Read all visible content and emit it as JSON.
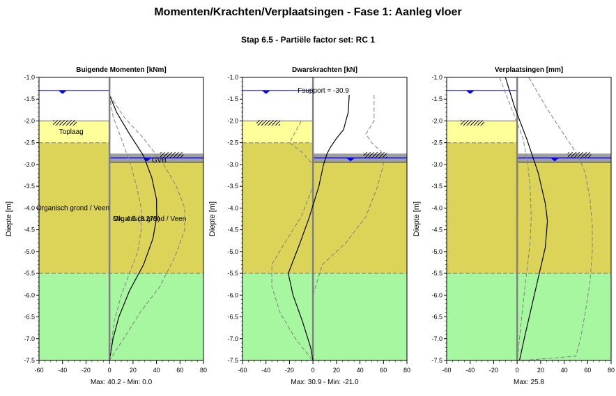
{
  "title": "Momenten/Krachten/Verplaatsingen - Fase 1: Aanleg vloer",
  "subtitle": "Stap 6.5 - Partiële factor set: RC 1",
  "colors": {
    "background": "#ffffff",
    "toplaag": "#ffff99",
    "organisch": "#dbd458",
    "zand": "#a6f7a0",
    "water_line": "#0000ff",
    "excavation_band": "#a0a0a0",
    "wall": "#808080",
    "result_line": "#000000",
    "envelope_line": "#808080"
  },
  "soil": {
    "left_surface": -2.0,
    "right_surface": -2.75,
    "layer_boundaries": [
      -2.5,
      -5.5
    ],
    "layers": [
      {
        "name": "Toplaag",
        "top": -2.0,
        "bottom": -2.5,
        "side": "left"
      },
      {
        "name": "Organisch grond / Veen",
        "top": -2.5,
        "bottom": -5.5,
        "side": "left"
      },
      {
        "name": "Organisch grond / Veen",
        "top": -2.95,
        "bottom": -5.5,
        "side": "right"
      },
      {
        "name": "",
        "top": -5.5,
        "bottom": -7.5,
        "side": "both"
      }
    ],
    "water_left": -1.3,
    "water_right": -2.85,
    "wall_bottom": -7.5
  },
  "labels": {
    "toplaag": "Toplaag",
    "organisch_left": "Organisch grond / Veen",
    "organisch_right": "Organisch grond / Veen",
    "mk": "Mk: 4.5 (3.275)",
    "gvb": "GVB",
    "fsupport": "Fsupport = -30.9"
  },
  "chart_data": [
    {
      "type": "line",
      "title": "Buigende Momenten [kNm]",
      "ylabel": "Diepte [m]",
      "xlim": [
        -60,
        80
      ],
      "ylim": [
        -7.5,
        -1.0
      ],
      "xticks": [
        -60,
        -40,
        -20,
        0,
        20,
        40,
        60,
        80
      ],
      "yticks": [
        -1.0,
        -1.5,
        -2.0,
        -2.5,
        -3.0,
        -3.5,
        -4.0,
        -4.5,
        -5.0,
        -5.5,
        -6.0,
        -6.5,
        -7.0,
        -7.5
      ],
      "footer": "Max: 40.2 - Min: 0.0",
      "series": [
        {
          "role": "result",
          "points": [
            [
              0,
              -1.4
            ],
            [
              6,
              -1.8
            ],
            [
              17,
              -2.3
            ],
            [
              29,
              -2.8
            ],
            [
              36,
              -3.3
            ],
            [
              40,
              -3.8
            ],
            [
              40.2,
              -4.2
            ],
            [
              37,
              -4.7
            ],
            [
              29,
              -5.3
            ],
            [
              17,
              -5.9
            ],
            [
              8,
              -6.5
            ],
            [
              3,
              -7.0
            ],
            [
              0,
              -7.5
            ]
          ]
        },
        {
          "role": "envelope",
          "points": [
            [
              0,
              -1.4
            ],
            [
              12,
              -1.9
            ],
            [
              29,
              -2.4
            ],
            [
              46,
              -3.0
            ],
            [
              57,
              -3.5
            ],
            [
              64,
              -4.0
            ],
            [
              64,
              -4.5
            ],
            [
              56,
              -5.1
            ],
            [
              43,
              -5.8
            ],
            [
              26,
              -6.4
            ],
            [
              12,
              -7.0
            ],
            [
              0,
              -7.5
            ]
          ]
        },
        {
          "role": "envelope",
          "points": [
            [
              0,
              -1.4
            ],
            [
              3,
              -1.9
            ],
            [
              10,
              -2.4
            ],
            [
              18,
              -3.0
            ],
            [
              23,
              -3.5
            ],
            [
              27,
              -4.0
            ],
            [
              27,
              -4.5
            ],
            [
              24,
              -5.0
            ],
            [
              17,
              -5.5
            ],
            [
              10,
              -6.0
            ],
            [
              4,
              -6.6
            ],
            [
              0,
              -7.5
            ]
          ]
        }
      ]
    },
    {
      "type": "line",
      "title": "Dwarskrachten [kN]",
      "ylabel": "Diepte [m]",
      "xlim": [
        -60,
        80
      ],
      "ylim": [
        -7.5,
        -1.0
      ],
      "xticks": [
        -60,
        -40,
        -20,
        0,
        20,
        40,
        60,
        80
      ],
      "yticks": [
        -1.0,
        -1.5,
        -2.0,
        -2.5,
        -3.0,
        -3.5,
        -4.0,
        -4.5,
        -5.0,
        -5.5,
        -6.0,
        -6.5,
        -7.0,
        -7.5
      ],
      "footer": "Max: 30.9 - Min: -21.0",
      "series": [
        {
          "role": "result",
          "points": [
            [
              30.9,
              -1.4
            ],
            [
              30,
              -1.8
            ],
            [
              26,
              -2.2
            ],
            [
              20,
              -2.4
            ],
            [
              15,
              -2.6
            ],
            [
              12,
              -2.75
            ],
            [
              9,
              -3.0
            ],
            [
              5,
              -3.5
            ],
            [
              -3,
              -4.2
            ],
            [
              -11,
              -4.8
            ],
            [
              -21,
              -5.5
            ],
            [
              -17,
              -6.0
            ],
            [
              -9,
              -6.6
            ],
            [
              -2,
              -7.2
            ],
            [
              0,
              -7.5
            ]
          ]
        },
        {
          "role": "envelope",
          "points": [
            [
              52,
              -1.4
            ],
            [
              52,
              -2.0
            ],
            [
              45,
              -2.3
            ],
            [
              50,
              -2.5
            ],
            [
              58,
              -2.7
            ],
            [
              60,
              -3.0
            ],
            [
              55,
              -3.5
            ],
            [
              45,
              -4.2
            ],
            [
              28,
              -4.8
            ],
            [
              8,
              -5.3
            ],
            [
              0,
              -6.0
            ],
            [
              0,
              -6.5
            ],
            [
              0,
              -7.5
            ]
          ]
        },
        {
          "role": "envelope",
          "points": [
            [
              -10,
              -2.0
            ],
            [
              -20,
              -2.5
            ],
            [
              -10,
              -2.7
            ],
            [
              0,
              -3.0
            ],
            [
              0,
              -3.5
            ],
            [
              -10,
              -4.2
            ],
            [
              -24,
              -4.8
            ],
            [
              -35,
              -5.3
            ],
            [
              -35,
              -5.8
            ],
            [
              -28,
              -6.4
            ],
            [
              -15,
              -7.0
            ],
            [
              0,
              -7.5
            ]
          ]
        }
      ]
    },
    {
      "type": "line",
      "title": "Verplaatsingen [mm]",
      "ylabel": "Diepte [m]",
      "xlim": [
        -60,
        80
      ],
      "ylim": [
        -7.5,
        -1.0
      ],
      "xticks": [
        -60,
        -40,
        -20,
        0,
        20,
        40,
        60,
        80
      ],
      "yticks": [
        -1.0,
        -1.5,
        -2.0,
        -2.5,
        -3.0,
        -3.5,
        -4.0,
        -4.5,
        -5.0,
        -5.5,
        -6.0,
        -6.5,
        -7.0,
        -7.5
      ],
      "footer": "Max: 25.8",
      "series": [
        {
          "role": "result",
          "points": [
            [
              -10,
              -1.0
            ],
            [
              -2,
              -1.7
            ],
            [
              8,
              -2.4
            ],
            [
              18,
              -3.2
            ],
            [
              24,
              -3.9
            ],
            [
              25.8,
              -4.3
            ],
            [
              24,
              -4.9
            ],
            [
              18,
              -5.6
            ],
            [
              12,
              -6.3
            ],
            [
              6,
              -7.0
            ],
            [
              2,
              -7.5
            ]
          ]
        },
        {
          "role": "envelope",
          "points": [
            [
              10,
              -1.0
            ],
            [
              25,
              -1.7
            ],
            [
              42,
              -2.4
            ],
            [
              52,
              -2.8
            ],
            [
              58,
              -3.2
            ],
            [
              62,
              -3.8
            ],
            [
              64,
              -4.4
            ],
            [
              64,
              -5.0
            ],
            [
              62,
              -5.7
            ],
            [
              58,
              -6.4
            ],
            [
              54,
              -7.0
            ],
            [
              50,
              -7.4
            ],
            [
              5,
              -7.5
            ]
          ]
        },
        {
          "role": "envelope",
          "points": [
            [
              -15,
              -1.0
            ],
            [
              -5,
              -1.7
            ],
            [
              5,
              -2.4
            ],
            [
              9,
              -3.0
            ],
            [
              11,
              -3.5
            ],
            [
              12,
              -4.2
            ],
            [
              11,
              -4.8
            ],
            [
              8,
              -5.5
            ],
            [
              5,
              -6.2
            ],
            [
              2,
              -7.0
            ],
            [
              0,
              -7.5
            ]
          ]
        }
      ]
    }
  ]
}
